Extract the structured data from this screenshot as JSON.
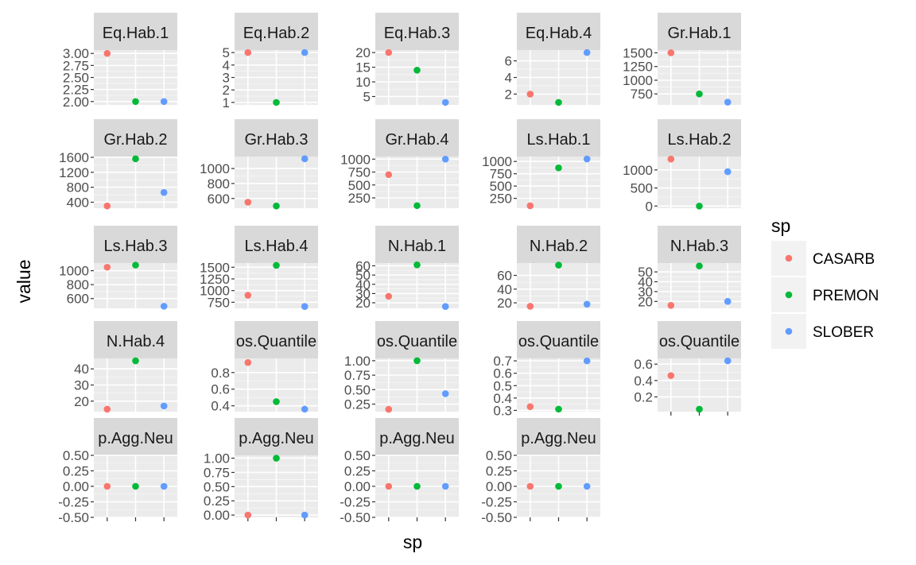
{
  "chart_data": {
    "type": "scatter",
    "facet_layout": "5x5 grid, free y scales, shared x axis",
    "xlabel": "sp",
    "ylabel": "value",
    "x_categories": [
      "CASARB",
      "PREMON",
      "SLOBER"
    ],
    "x_tick_labels_shown": false,
    "grid": true,
    "legend": {
      "title": "sp",
      "placement": "right",
      "entries": [
        {
          "label": "CASARB",
          "color": "#F8766D"
        },
        {
          "label": "PREMON",
          "color": "#00BA38"
        },
        {
          "label": "SLOBER",
          "color": "#619CFF"
        }
      ]
    },
    "colors": {
      "panel_bg": "#EBEBEB",
      "strip_bg": "#D9D9D9",
      "grid": "#FFFFFF"
    },
    "facets": [
      {
        "label": "Eq.Hab.1",
        "ylim": [
          1.93,
          3.07
        ],
        "ticks": [
          "3.00",
          "2.75",
          "2.50",
          "2.25",
          "2.00"
        ],
        "tick_values": [
          3.0,
          2.75,
          2.5,
          2.25,
          2.0
        ],
        "values": [
          3.0,
          2.0,
          2.0
        ]
      },
      {
        "label": "Eq.Hab.2",
        "ylim": [
          0.8,
          5.2
        ],
        "ticks": [
          "5",
          "4",
          "3",
          "2",
          "1"
        ],
        "tick_values": [
          5,
          4,
          3,
          2,
          1
        ],
        "values": [
          5,
          1,
          5
        ]
      },
      {
        "label": "Eq.Hab.3",
        "ylim": [
          2.15,
          20.85
        ],
        "ticks": [
          "20",
          "15",
          "10",
          "5"
        ],
        "tick_values": [
          20,
          15,
          10,
          5
        ],
        "values": [
          20,
          14,
          3
        ]
      },
      {
        "label": "Eq.Hab.4",
        "ylim": [
          0.7,
          7.3
        ],
        "ticks": [
          "6",
          "4",
          "2"
        ],
        "tick_values": [
          6,
          4,
          2
        ],
        "values": [
          2,
          1,
          7
        ]
      },
      {
        "label": "Gr.Hab.1",
        "ylim": [
          550,
          1550
        ],
        "ticks": [
          "1500",
          "1250",
          "1000",
          "750"
        ],
        "tick_values": [
          1500,
          1250,
          1000,
          750
        ],
        "values": [
          1500,
          750,
          600
        ]
      },
      {
        "label": "Gr.Hab.2",
        "ylim": [
          240,
          1620
        ],
        "ticks": [
          "1600",
          "1200",
          "800",
          "400"
        ],
        "tick_values": [
          1600,
          1200,
          800,
          400
        ],
        "values": [
          300,
          1560,
          660
        ]
      },
      {
        "label": "Gr.Hab.3",
        "ylim": [
          470,
          1160
        ],
        "ticks": [
          "1000",
          "800",
          "600"
        ],
        "tick_values": [
          1000,
          800,
          600
        ],
        "values": [
          550,
          500,
          1130
        ]
      },
      {
        "label": "Gr.Hab.4",
        "ylim": [
          50,
          1050
        ],
        "ticks": [
          "1000",
          "750",
          "500",
          "250"
        ],
        "tick_values": [
          1000,
          750,
          500,
          250
        ],
        "values": [
          700,
          100,
          1000
        ]
      },
      {
        "label": "Ls.Hab.1",
        "ylim": [
          50,
          1100
        ],
        "ticks": [
          "1000",
          "750",
          "500",
          "250"
        ],
        "tick_values": [
          1000,
          750,
          500,
          250
        ],
        "values": [
          100,
          870,
          1050
        ]
      },
      {
        "label": "Ls.Hab.2",
        "ylim": [
          -60,
          1370
        ],
        "ticks": [
          "1000",
          "500",
          "0"
        ],
        "tick_values": [
          1000,
          500,
          0
        ],
        "values": [
          1300,
          0,
          950
        ]
      },
      {
        "label": "Ls.Hab.3",
        "ylim": [
          460,
          1110
        ],
        "ticks": [
          "1000",
          "800",
          "600"
        ],
        "tick_values": [
          1000,
          800,
          600
        ],
        "values": [
          1050,
          1080,
          490
        ]
      },
      {
        "label": "Ls.Hab.4",
        "ylim": [
          620,
          1590
        ],
        "ticks": [
          "1500",
          "1250",
          "1000",
          "750"
        ],
        "tick_values": [
          1500,
          1250,
          1000,
          750
        ],
        "values": [
          900,
          1540,
          660
        ]
      },
      {
        "label": "N.Hab.1",
        "ylim": [
          14,
          63
        ],
        "ticks": [
          "60",
          "50",
          "40",
          "30",
          "20"
        ],
        "tick_values": [
          60,
          50,
          40,
          30,
          20
        ],
        "values": [
          27,
          61,
          16
        ]
      },
      {
        "label": "N.Hab.2",
        "ylim": [
          12,
          78
        ],
        "ticks": [
          "60",
          "40",
          "20"
        ],
        "tick_values": [
          60,
          40,
          20
        ],
        "values": [
          15,
          75,
          18
        ]
      },
      {
        "label": "N.Hab.3",
        "ylim": [
          13,
          59
        ],
        "ticks": [
          "50",
          "40",
          "30",
          "20"
        ],
        "tick_values": [
          50,
          40,
          30,
          20
        ],
        "values": [
          16,
          56,
          20
        ]
      },
      {
        "label": "N.Hab.4",
        "ylim": [
          13.5,
          46.5
        ],
        "ticks": [
          "40",
          "30",
          "20"
        ],
        "tick_values": [
          40,
          30,
          20
        ],
        "values": [
          15,
          45,
          17
        ]
      },
      {
        "label": "os.Quantile",
        "ylim": [
          0.33,
          0.97
        ],
        "ticks": [
          "0.8",
          "0.6",
          "0.4"
        ],
        "tick_values": [
          0.8,
          0.6,
          0.4
        ],
        "values": [
          0.92,
          0.45,
          0.36
        ]
      },
      {
        "label": "os.Quantile",
        "ylim": [
          0.12,
          1.04
        ],
        "ticks": [
          "1.00",
          "0.75",
          "0.50",
          "0.25"
        ],
        "tick_values": [
          1.0,
          0.75,
          0.5,
          0.25
        ],
        "values": [
          0.16,
          1.0,
          0.43
        ]
      },
      {
        "label": "os.Quantile",
        "ylim": [
          0.29,
          0.72
        ],
        "ticks": [
          "0.7",
          "0.6",
          "0.5",
          "0.4",
          "0.3"
        ],
        "tick_values": [
          0.7,
          0.6,
          0.5,
          0.4,
          0.3
        ],
        "values": [
          0.33,
          0.31,
          0.7
        ]
      },
      {
        "label": "os.Quantile",
        "ylim": [
          0.02,
          0.67
        ],
        "ticks": [
          "0.6",
          "0.4",
          "0.2"
        ],
        "tick_values": [
          0.6,
          0.4,
          0.2
        ],
        "values": [
          0.46,
          0.05,
          0.64
        ]
      },
      {
        "label": "p.Agg.Neu",
        "ylim": [
          -0.5,
          0.5
        ],
        "ticks": [
          "0.50",
          "0.25",
          "0.00",
          "-0.25",
          "-0.50"
        ],
        "tick_values": [
          0.5,
          0.25,
          0.0,
          -0.25,
          -0.5
        ],
        "values": [
          0.0,
          0.0,
          0.0
        ]
      },
      {
        "label": "p.Agg.Neu",
        "ylim": [
          -0.04,
          1.05
        ],
        "ticks": [
          "1.00",
          "0.75",
          "0.50",
          "0.25",
          "0.00"
        ],
        "tick_values": [
          1.0,
          0.75,
          0.5,
          0.25,
          0.0
        ],
        "values": [
          0.0,
          1.0,
          0.0
        ]
      },
      {
        "label": "p.Agg.Neu",
        "ylim": [
          -0.5,
          0.5
        ],
        "ticks": [
          "0.50",
          "0.25",
          "0.00",
          "-0.25",
          "-0.50"
        ],
        "tick_values": [
          0.5,
          0.25,
          0.0,
          -0.25,
          -0.5
        ],
        "values": [
          0.0,
          0.0,
          0.0
        ]
      },
      {
        "label": "p.Agg.Neu",
        "ylim": [
          -0.5,
          0.5
        ],
        "ticks": [
          "0.50",
          "0.25",
          "0.00",
          "-0.25",
          "-0.50"
        ],
        "tick_values": [
          0.5,
          0.25,
          0.0,
          -0.25,
          -0.5
        ],
        "values": [
          0.0,
          0.0,
          0.0
        ]
      }
    ]
  }
}
